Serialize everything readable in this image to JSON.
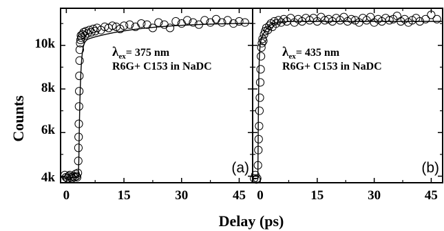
{
  "chart_data": {
    "type": "scatter",
    "ylabel": "Counts",
    "xlabel": "Delay (ps)",
    "y_ticks": [
      {
        "value": 4000,
        "label": "4k"
      },
      {
        "value": 6000,
        "label": "6k"
      },
      {
        "value": 8000,
        "label": "8k"
      },
      {
        "value": 10000,
        "label": "10k"
      }
    ],
    "ylim": [
      3700,
      11700
    ],
    "panels": [
      {
        "id": "a",
        "label": "(a)",
        "annotation_lambda": "λ",
        "annotation_sub": "ex",
        "annotation_value": "= 375 nm",
        "annotation_line2": "R6G+ C153 in NaDC",
        "xlim": [
          -1.5,
          48.5
        ],
        "x_ticks": [
          {
            "value": 0,
            "label": "0"
          },
          {
            "value": 15,
            "label": "15"
          },
          {
            "value": 30,
            "label": "30"
          },
          {
            "value": 45,
            "label": "45"
          }
        ],
        "fit": {
          "baseline": 3950,
          "t0": 3.2,
          "rise": 0.4,
          "amp1": 6200,
          "tau1": 0.5,
          "amp2": 900,
          "tau2": 14
        },
        "data_points": [
          {
            "x": -0.4,
            "y": 4050
          },
          {
            "x": -0.1,
            "y": 3950
          },
          {
            "x": 0.3,
            "y": 3900
          },
          {
            "x": 0.6,
            "y": 4000
          },
          {
            "x": 0.9,
            "y": 4050
          },
          {
            "x": 1.2,
            "y": 3950
          },
          {
            "x": 1.5,
            "y": 3900
          },
          {
            "x": 1.8,
            "y": 4000
          },
          {
            "x": 2.1,
            "y": 3950
          },
          {
            "x": 2.4,
            "y": 4100
          },
          {
            "x": 2.6,
            "y": 4000
          },
          {
            "x": 2.8,
            "y": 3950
          },
          {
            "x": 3.0,
            "y": 4150
          },
          {
            "x": 3.1,
            "y": 4700
          },
          {
            "x": 3.15,
            "y": 5300
          },
          {
            "x": 3.2,
            "y": 5800
          },
          {
            "x": 3.25,
            "y": 6400
          },
          {
            "x": 3.3,
            "y": 7200
          },
          {
            "x": 3.35,
            "y": 7900
          },
          {
            "x": 3.4,
            "y": 8600
          },
          {
            "x": 3.45,
            "y": 9300
          },
          {
            "x": 3.5,
            "y": 9800
          },
          {
            "x": 3.6,
            "y": 10100
          },
          {
            "x": 3.7,
            "y": 10250
          },
          {
            "x": 3.8,
            "y": 10450
          },
          {
            "x": 3.9,
            "y": 10350
          },
          {
            "x": 4.2,
            "y": 10500
          },
          {
            "x": 4.5,
            "y": 10600
          },
          {
            "x": 4.8,
            "y": 10450
          },
          {
            "x": 5.1,
            "y": 10650
          },
          {
            "x": 5.5,
            "y": 10550
          },
          {
            "x": 6.0,
            "y": 10700
          },
          {
            "x": 6.5,
            "y": 10600
          },
          {
            "x": 7.0,
            "y": 10750
          },
          {
            "x": 7.5,
            "y": 10650
          },
          {
            "x": 8.0,
            "y": 10800
          },
          {
            "x": 9.0,
            "y": 10700
          },
          {
            "x": 10.0,
            "y": 10850
          },
          {
            "x": 11.0,
            "y": 10800
          },
          {
            "x": 12.0,
            "y": 10900
          },
          {
            "x": 13.0,
            "y": 10850
          },
          {
            "x": 14.0,
            "y": 10750
          },
          {
            "x": 15.0,
            "y": 10900
          },
          {
            "x": 16.5,
            "y": 10950
          },
          {
            "x": 18.0,
            "y": 10850
          },
          {
            "x": 19.5,
            "y": 11000
          },
          {
            "x": 21.0,
            "y": 10950
          },
          {
            "x": 22.5,
            "y": 10800
          },
          {
            "x": 24.0,
            "y": 11050
          },
          {
            "x": 25.5,
            "y": 10950
          },
          {
            "x": 27.0,
            "y": 10800
          },
          {
            "x": 28.5,
            "y": 11100
          },
          {
            "x": 30.0,
            "y": 11000
          },
          {
            "x": 31.5,
            "y": 11150
          },
          {
            "x": 33.0,
            "y": 11050
          },
          {
            "x": 34.5,
            "y": 10950
          },
          {
            "x": 36.0,
            "y": 11150
          },
          {
            "x": 37.5,
            "y": 11050
          },
          {
            "x": 39.0,
            "y": 11200
          },
          {
            "x": 40.5,
            "y": 11050
          },
          {
            "x": 42.0,
            "y": 11150
          },
          {
            "x": 43.5,
            "y": 11000
          },
          {
            "x": 45.0,
            "y": 11100
          },
          {
            "x": 46.5,
            "y": 11050
          }
        ]
      },
      {
        "id": "b",
        "label": "(b)",
        "annotation_lambda": "λ",
        "annotation_sub": "ex",
        "annotation_value": "= 435 nm",
        "annotation_line2": "R6G+ C153 in NaDC",
        "xlim": [
          -2,
          48
        ],
        "x_ticks": [
          {
            "value": 0,
            "label": "0"
          },
          {
            "value": 15,
            "label": "15"
          },
          {
            "value": 30,
            "label": "30"
          },
          {
            "value": 45,
            "label": "45"
          }
        ],
        "fit": {
          "baseline": 3900,
          "t0": -0.6,
          "rise": 0.15,
          "amp1": 5800,
          "tau1": 0.35,
          "amp2": 1400,
          "tau2": 1.6
        },
        "data_points": [
          {
            "x": -1.6,
            "y": 3900
          },
          {
            "x": -1.3,
            "y": 4050
          },
          {
            "x": -1.0,
            "y": 3850
          },
          {
            "x": -0.8,
            "y": 3900
          },
          {
            "x": -0.6,
            "y": 4500
          },
          {
            "x": -0.5,
            "y": 5200
          },
          {
            "x": -0.4,
            "y": 5700
          },
          {
            "x": -0.3,
            "y": 6300
          },
          {
            "x": -0.2,
            "y": 7000
          },
          {
            "x": -0.1,
            "y": 7600
          },
          {
            "x": 0.0,
            "y": 8300
          },
          {
            "x": 0.1,
            "y": 8900
          },
          {
            "x": 0.2,
            "y": 9500
          },
          {
            "x": 0.3,
            "y": 9900
          },
          {
            "x": 0.45,
            "y": 10100
          },
          {
            "x": 0.6,
            "y": 10300
          },
          {
            "x": 0.8,
            "y": 10200
          },
          {
            "x": 1.0,
            "y": 10500
          },
          {
            "x": 1.3,
            "y": 10650
          },
          {
            "x": 1.6,
            "y": 10800
          },
          {
            "x": 2.0,
            "y": 10700
          },
          {
            "x": 2.4,
            "y": 10900
          },
          {
            "x": 2.8,
            "y": 11000
          },
          {
            "x": 3.2,
            "y": 10850
          },
          {
            "x": 3.7,
            "y": 11100
          },
          {
            "x": 4.2,
            "y": 11000
          },
          {
            "x": 4.8,
            "y": 11150
          },
          {
            "x": 5.5,
            "y": 11050
          },
          {
            "x": 6.2,
            "y": 11200
          },
          {
            "x": 7.0,
            "y": 11100
          },
          {
            "x": 8.0,
            "y": 11250
          },
          {
            "x": 9.0,
            "y": 11050
          },
          {
            "x": 10.0,
            "y": 11200
          },
          {
            "x": 11.0,
            "y": 11100
          },
          {
            "x": 12.0,
            "y": 11250
          },
          {
            "x": 13.0,
            "y": 11150
          },
          {
            "x": 14.0,
            "y": 11250
          },
          {
            "x": 15.0,
            "y": 11100
          },
          {
            "x": 16.0,
            "y": 11300
          },
          {
            "x": 17.0,
            "y": 11150
          },
          {
            "x": 18.0,
            "y": 11200
          },
          {
            "x": 19.0,
            "y": 11100
          },
          {
            "x": 20.0,
            "y": 11250
          },
          {
            "x": 21.0,
            "y": 11150
          },
          {
            "x": 22.0,
            "y": 11300
          },
          {
            "x": 23.0,
            "y": 11100
          },
          {
            "x": 24.0,
            "y": 11200
          },
          {
            "x": 25.0,
            "y": 11150
          },
          {
            "x": 26.0,
            "y": 11050
          },
          {
            "x": 27.0,
            "y": 11250
          },
          {
            "x": 28.0,
            "y": 11150
          },
          {
            "x": 29.0,
            "y": 11300
          },
          {
            "x": 30.0,
            "y": 11050
          },
          {
            "x": 31.0,
            "y": 11200
          },
          {
            "x": 32.0,
            "y": 11100
          },
          {
            "x": 33.0,
            "y": 11250
          },
          {
            "x": 34.0,
            "y": 11150
          },
          {
            "x": 35.0,
            "y": 11200
          },
          {
            "x": 36.0,
            "y": 11350
          },
          {
            "x": 37.0,
            "y": 11100
          },
          {
            "x": 38.0,
            "y": 11200
          },
          {
            "x": 39.0,
            "y": 11050
          },
          {
            "x": 40.0,
            "y": 11150
          },
          {
            "x": 41.0,
            "y": 11250
          },
          {
            "x": 42.0,
            "y": 11100
          },
          {
            "x": 43.5,
            "y": 11200
          },
          {
            "x": 45.0,
            "y": 11400
          },
          {
            "x": 46.5,
            "y": 11200
          }
        ]
      }
    ]
  }
}
